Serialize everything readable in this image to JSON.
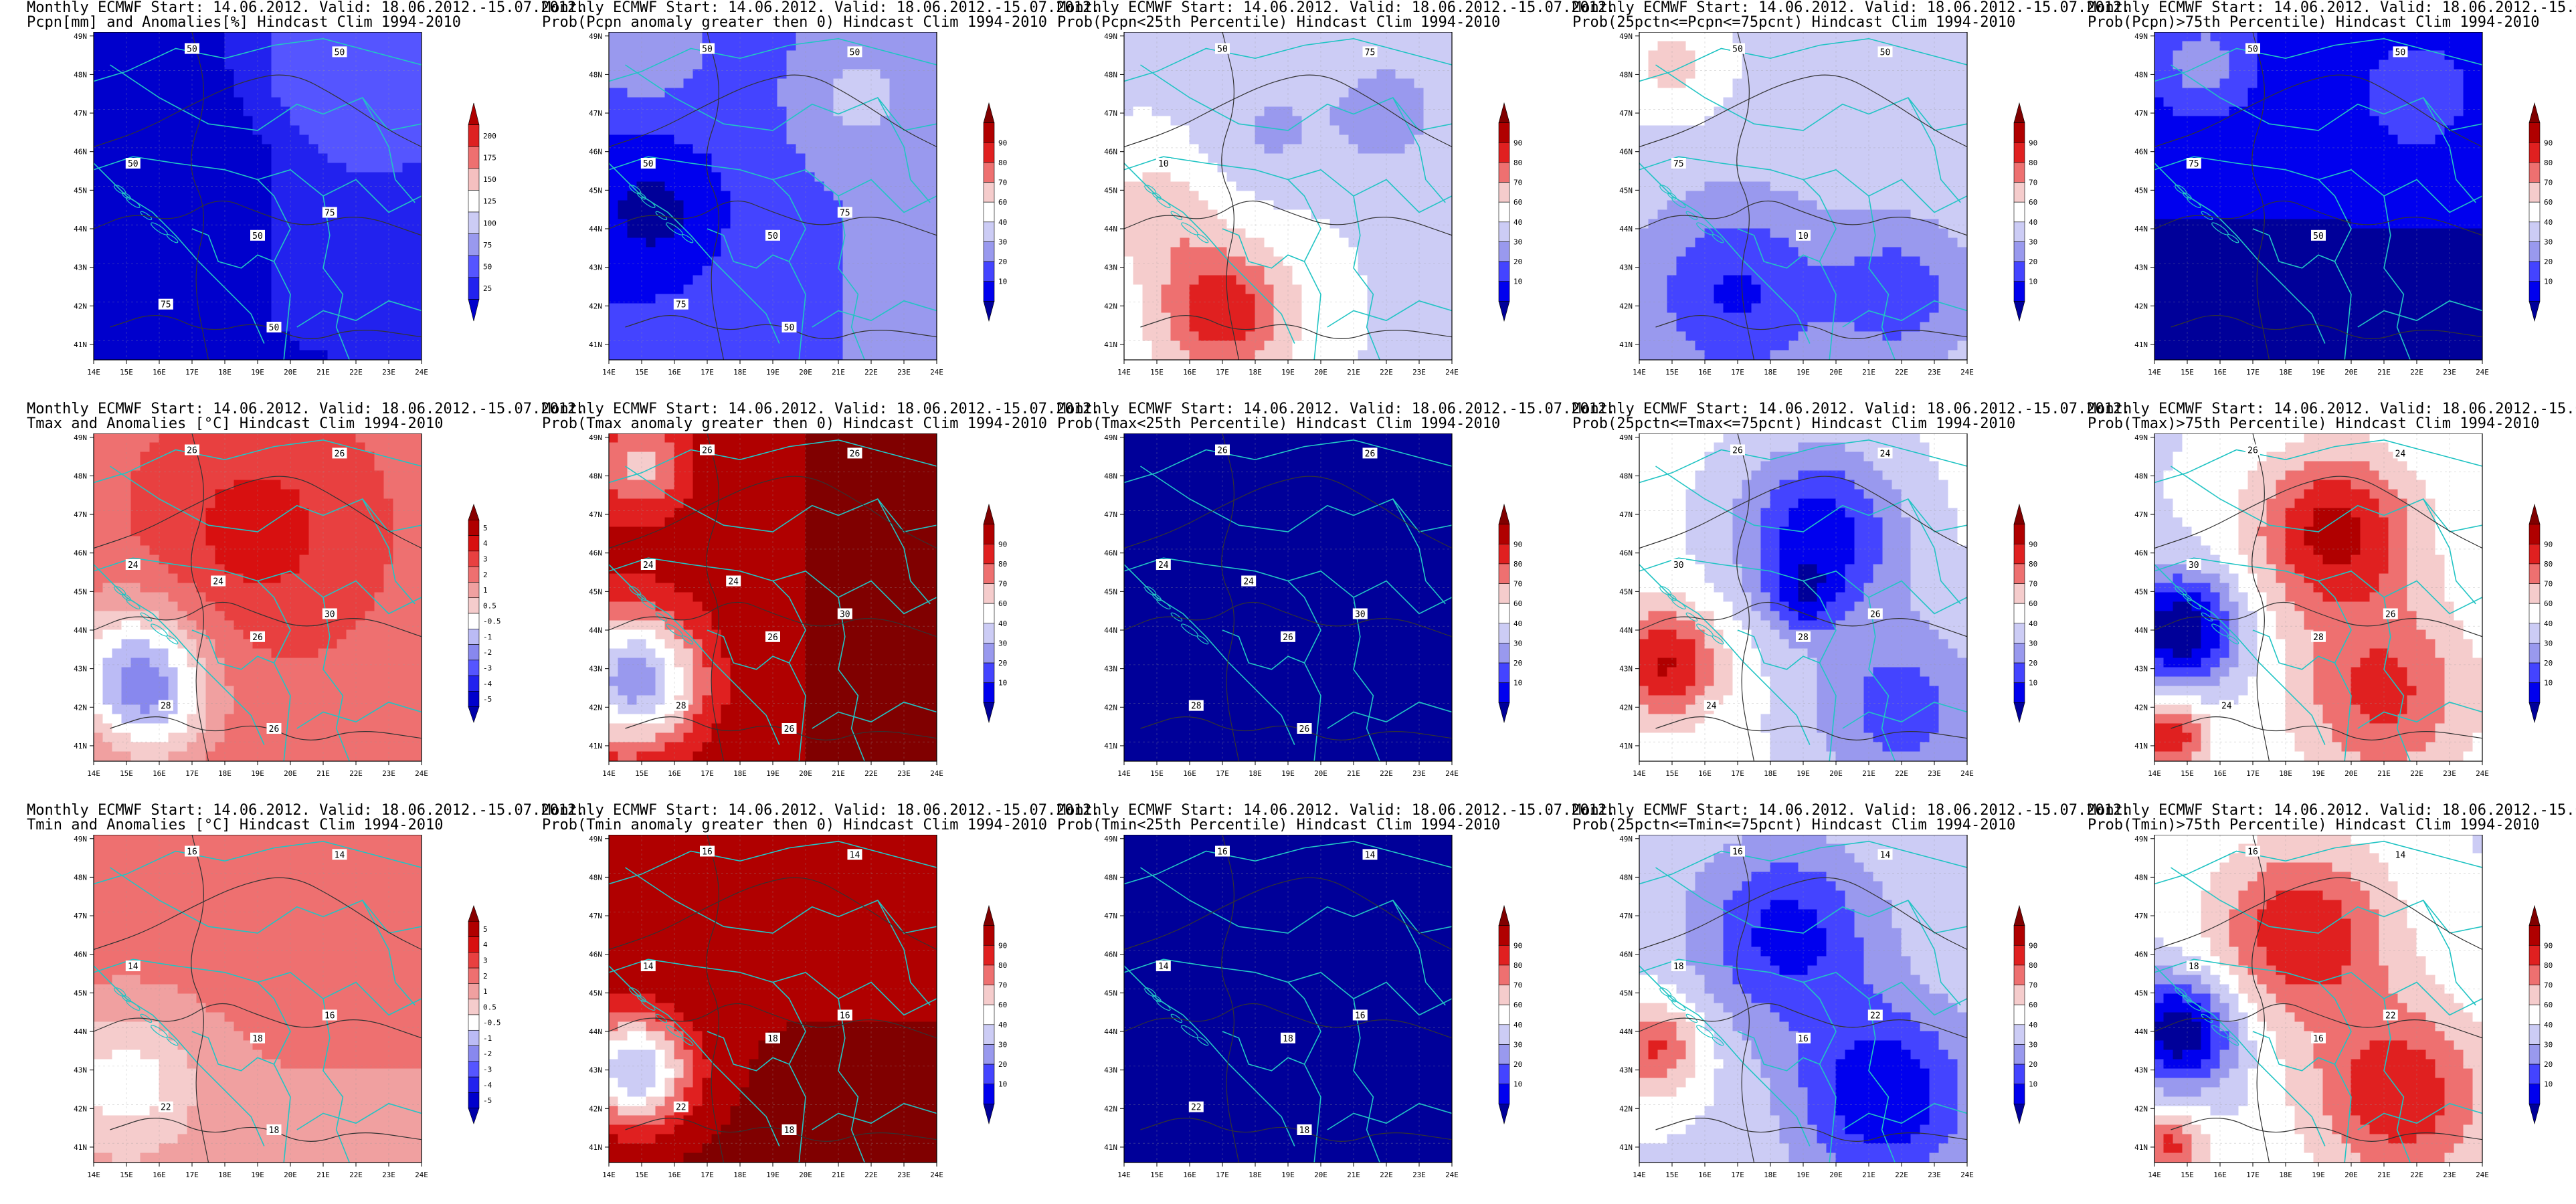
{
  "header_line": "Monthly ECMWF Start: 14.06.2012. Valid: 18.06.2012.-15.07.2012.",
  "lon_ticks": [
    "14E",
    "15E",
    "16E",
    "17E",
    "18E",
    "19E",
    "20E",
    "21E",
    "22E",
    "23E",
    "24E"
  ],
  "lat_ticks": [
    "41N",
    "42N",
    "43N",
    "44N",
    "45N",
    "46N",
    "47N",
    "48N",
    "49N"
  ],
  "scales": {
    "pcpn": {
      "labels": [
        "25",
        "50",
        "75",
        "100",
        "125",
        "150",
        "175",
        "200"
      ],
      "colors": [
        "#0000cc",
        "#2222ee",
        "#5555ff",
        "#9999ee",
        "#ccccf5",
        "#ffffff",
        "#f5c0c0",
        "#ee7070",
        "#dd2222",
        "#b00000"
      ]
    },
    "anom": {
      "labels": [
        "-5",
        "-4",
        "-3",
        "-2",
        "-1",
        "-0.5",
        "0.5",
        "1",
        "2",
        "3",
        "4",
        "5"
      ],
      "colors": [
        "#0000aa",
        "#0000cc",
        "#2222ee",
        "#5555ff",
        "#8888ee",
        "#bbbbf5",
        "#ffffff",
        "#f5cccc",
        "#f0a0a0",
        "#ee7070",
        "#e84040",
        "#d81010",
        "#b00000",
        "#880000"
      ]
    },
    "prob": {
      "labels": [
        "10",
        "20",
        "30",
        "40",
        "60",
        "70",
        "80",
        "90"
      ],
      "colors": [
        "#000099",
        "#0000ee",
        "#4444ff",
        "#9999ee",
        "#ccccf5",
        "#ffffff",
        "#f5cccc",
        "#ee7070",
        "#e02020",
        "#b00000",
        "#800000"
      ]
    }
  },
  "palette": {
    "background": "#ffffff",
    "border_lines": "#22c4c4",
    "contours": "#333333"
  },
  "panels": [
    {
      "title": "Pcpn[mm] and Anomalies[%] Hindcast Clim 1994-2010",
      "scale": "pcpn",
      "field": "pcpn_anom",
      "contours": [
        "50",
        "50",
        "50",
        "50",
        "75",
        "75",
        "50"
      ]
    },
    {
      "title": "Prob(Pcpn anomaly greater then 0) Hindcast Clim 1994-2010",
      "scale": "prob",
      "field": "prob_pcpn_gt0",
      "contours": [
        "50",
        "50",
        "50",
        "50",
        "75",
        "75",
        "50"
      ]
    },
    {
      "title": "Prob(Pcpn<25th Percentile) Hindcast Clim 1994-2010",
      "scale": "prob",
      "field": "prob_pcpn_lt25",
      "contours": [
        "50",
        "75",
        "10"
      ]
    },
    {
      "title": "Prob(25pctn<=Pcpn<=75pcnt) Hindcast Clim 1994-2010",
      "scale": "prob",
      "field": "prob_pcpn_mid",
      "contours": [
        "50",
        "50",
        "75",
        "10"
      ]
    },
    {
      "title": "Prob(Pcpn)>75th Percentile) Hindcast Clim 1994-2010",
      "scale": "prob",
      "field": "prob_pcpn_gt75",
      "contours": [
        "50",
        "50",
        "75",
        "50"
      ]
    },
    {
      "title": "Tmax and Anomalies [°C] Hindcast Clim 1994-2010",
      "scale": "anom",
      "field": "tmax_anom",
      "contours": [
        "26",
        "26",
        "24",
        "26",
        "30",
        "28",
        "26",
        "24"
      ]
    },
    {
      "title": "Prob(Tmax anomaly greater then 0) Hindcast Clim 1994-2010",
      "scale": "prob",
      "field": "prob_tmax_gt0",
      "contours": [
        "26",
        "26",
        "24",
        "26",
        "30",
        "28",
        "26",
        "24"
      ]
    },
    {
      "title": "Prob(Tmax<25th Percentile) Hindcast Clim 1994-2010",
      "scale": "prob",
      "field": "prob_tmax_lt25",
      "contours": [
        "26",
        "26",
        "24",
        "26",
        "30",
        "28",
        "26",
        "24"
      ]
    },
    {
      "title": "Prob(25pctn<=Tmax<=75pcnt) Hindcast Clim 1994-2010",
      "scale": "prob",
      "field": "prob_tmax_mid",
      "contours": [
        "26",
        "24",
        "30",
        "28",
        "26",
        "24"
      ]
    },
    {
      "title": "Prob(Tmax)>75th Percentile) Hindcast Clim 1994-2010",
      "scale": "prob",
      "field": "prob_tmax_gt75",
      "contours": [
        "26",
        "24",
        "30",
        "28",
        "26",
        "24"
      ]
    },
    {
      "title": "Tmin and Anomalies [°C] Hindcast Clim 1994-2010",
      "scale": "anom",
      "field": "tmin_anom",
      "contours": [
        "16",
        "14",
        "14",
        "18",
        "16",
        "22",
        "18"
      ]
    },
    {
      "title": "Prob(Tmin anomaly greater then 0) Hindcast Clim 1994-2010",
      "scale": "prob",
      "field": "prob_tmin_gt0",
      "contours": [
        "16",
        "14",
        "14",
        "18",
        "16",
        "22",
        "18"
      ]
    },
    {
      "title": "Prob(Tmin<25th Percentile) Hindcast Clim 1994-2010",
      "scale": "prob",
      "field": "prob_tmin_lt25",
      "contours": [
        "16",
        "14",
        "14",
        "18",
        "16",
        "22",
        "18"
      ]
    },
    {
      "title": "Prob(25pctn<=Tmin<=75pcnt) Hindcast Clim 1994-2010",
      "scale": "prob",
      "field": "prob_tmin_mid",
      "contours": [
        "16",
        "14",
        "18",
        "16",
        "22"
      ]
    },
    {
      "title": "Prob(Tmin)>75th Percentile) Hindcast Clim 1994-2010",
      "scale": "prob",
      "field": "prob_tmin_gt75",
      "contours": [
        "16",
        "14",
        "18",
        "16",
        "22"
      ]
    }
  ]
}
